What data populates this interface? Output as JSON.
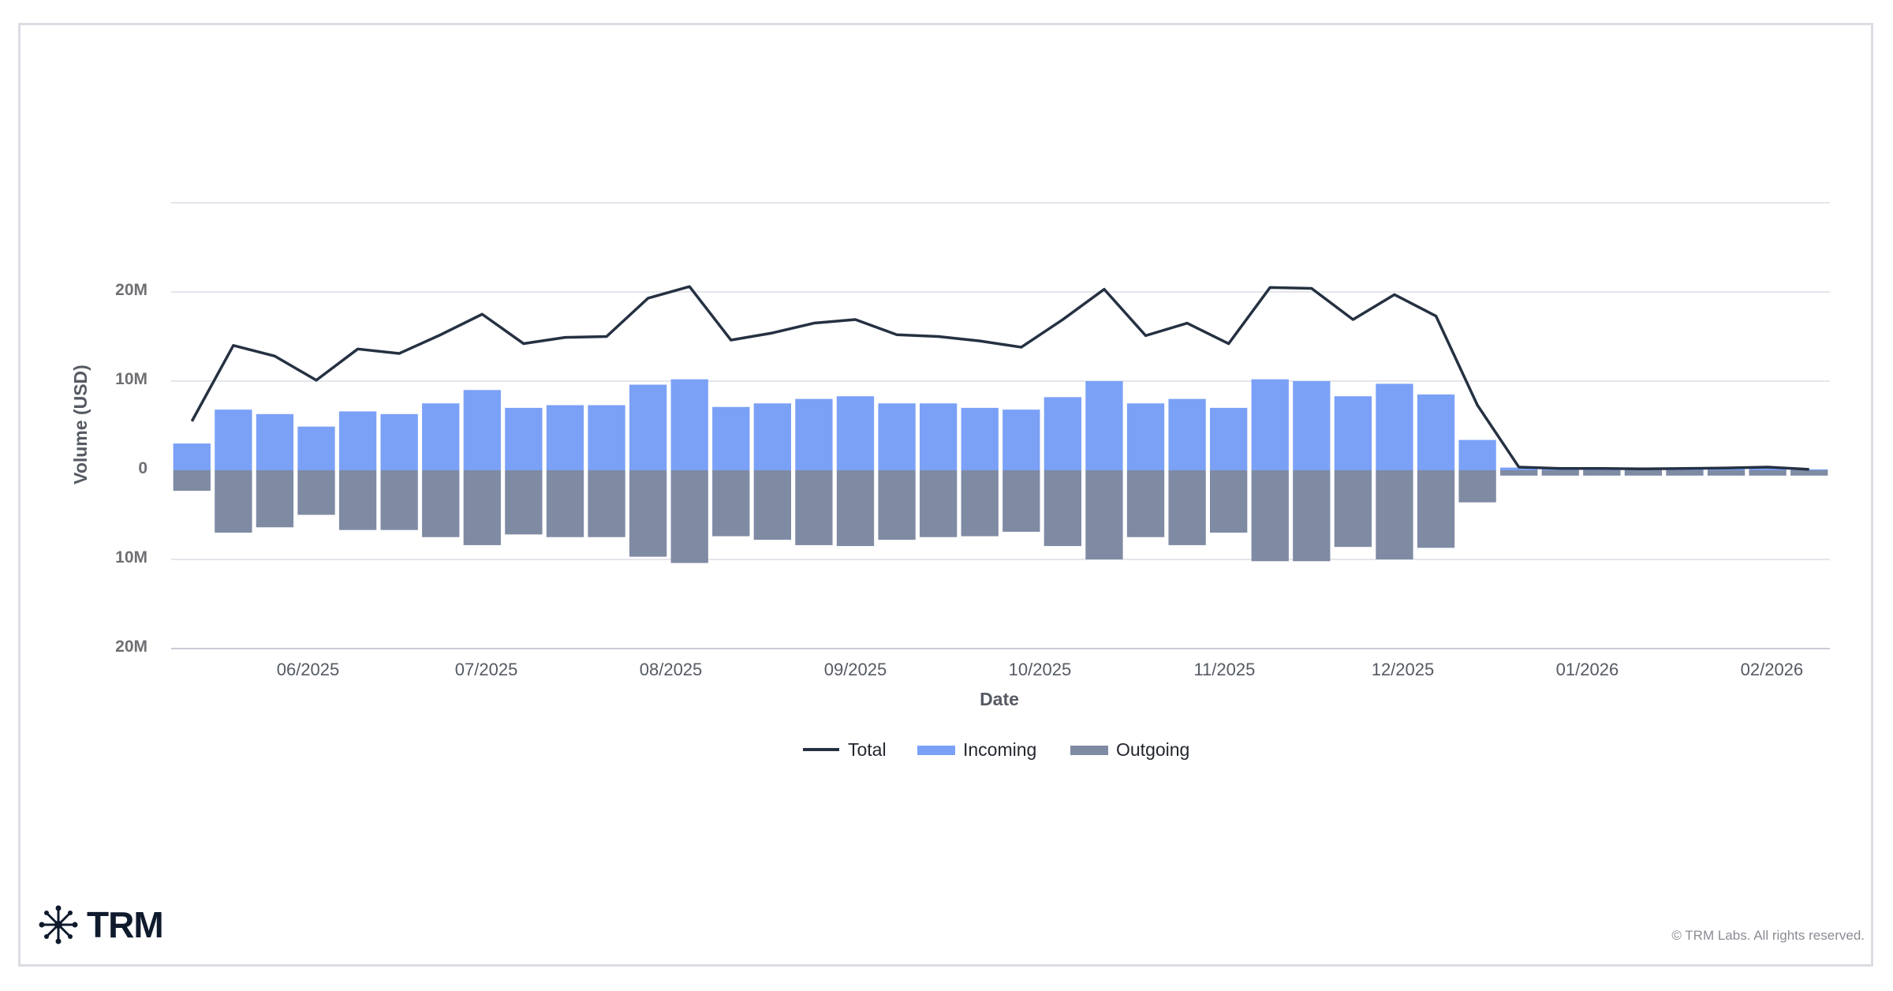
{
  "colors": {
    "total": "#253142",
    "incoming": "#7ba1f7",
    "outgoing": "#7f8ba3",
    "grid": "#e4e6ec",
    "border": "#dcdde3"
  },
  "chart_data": {
    "type": "bar",
    "xlabel": "Date",
    "ylabel": "Volume (USD)",
    "ylim": [
      -20000000,
      30000000
    ],
    "y_ticks": [
      {
        "value": 20000000,
        "label": "20M"
      },
      {
        "value": 10000000,
        "label": "10M"
      },
      {
        "value": 0,
        "label": "0"
      },
      {
        "value": -10000000,
        "label": "10M"
      },
      {
        "value": -20000000,
        "label": "20M"
      }
    ],
    "grid": true,
    "legend_position": "bottom-center",
    "x_tick_labels": [
      {
        "label": "06/2025",
        "index": 3.3
      },
      {
        "label": "07/2025",
        "index": 7.6
      },
      {
        "label": "08/2025",
        "index": 12.05
      },
      {
        "label": "09/2025",
        "index": 16.5
      },
      {
        "label": "10/2025",
        "index": 20.95
      },
      {
        "label": "11/2025",
        "index": 25.4
      },
      {
        "label": "12/2025",
        "index": 29.7
      },
      {
        "label": "01/2026",
        "index": 34.15
      },
      {
        "label": "02/2026",
        "index": 38.6
      }
    ],
    "series": [
      {
        "name": "Total",
        "type": "line",
        "values": [
          5.5,
          14.0,
          12.8,
          10.1,
          13.6,
          13.1,
          15.2,
          17.5,
          14.2,
          14.9,
          15.0,
          19.3,
          20.6,
          14.6,
          15.4,
          16.5,
          16.9,
          15.2,
          15.0,
          14.5,
          13.8,
          16.9,
          20.3,
          15.1,
          16.5,
          14.2,
          20.5,
          20.4,
          16.9,
          19.7,
          17.3,
          7.3,
          0.35,
          0.2,
          0.2,
          0.15,
          0.2,
          0.25,
          0.35,
          0.1
        ]
      },
      {
        "name": "Incoming",
        "type": "bar",
        "values": [
          3.0,
          6.8,
          6.3,
          4.9,
          6.6,
          6.3,
          7.5,
          9.0,
          7.0,
          7.3,
          7.3,
          9.6,
          10.2,
          7.1,
          7.5,
          8.0,
          8.3,
          7.5,
          7.5,
          7.0,
          6.8,
          8.2,
          10.0,
          7.5,
          8.0,
          7.0,
          10.2,
          10.0,
          8.3,
          9.7,
          8.5,
          3.4,
          0.3,
          0.15,
          0.3,
          0.15,
          0.15,
          0.35,
          0.3,
          0.1
        ]
      },
      {
        "name": "Outgoing",
        "type": "bar",
        "values": [
          -2.3,
          -7.0,
          -6.4,
          -5.0,
          -6.7,
          -6.7,
          -7.5,
          -8.4,
          -7.2,
          -7.5,
          -7.5,
          -9.7,
          -10.4,
          -7.4,
          -7.8,
          -8.4,
          -8.5,
          -7.8,
          -7.5,
          -7.4,
          -6.9,
          -8.5,
          -10.0,
          -7.5,
          -8.4,
          -7.0,
          -10.2,
          -10.2,
          -8.6,
          -10.0,
          -8.7,
          -3.6,
          -0.6,
          -0.6,
          -0.6,
          -0.6,
          -0.6,
          -0.6,
          -0.6,
          -0.6
        ]
      }
    ],
    "value_unit": "M USD"
  },
  "legend": {
    "total": "Total",
    "incoming": "Incoming",
    "outgoing": "Outgoing"
  },
  "footer": {
    "logo_text": "TRM",
    "logo_icon": "trm-network-icon",
    "copyright": "© TRM Labs. All rights reserved."
  }
}
